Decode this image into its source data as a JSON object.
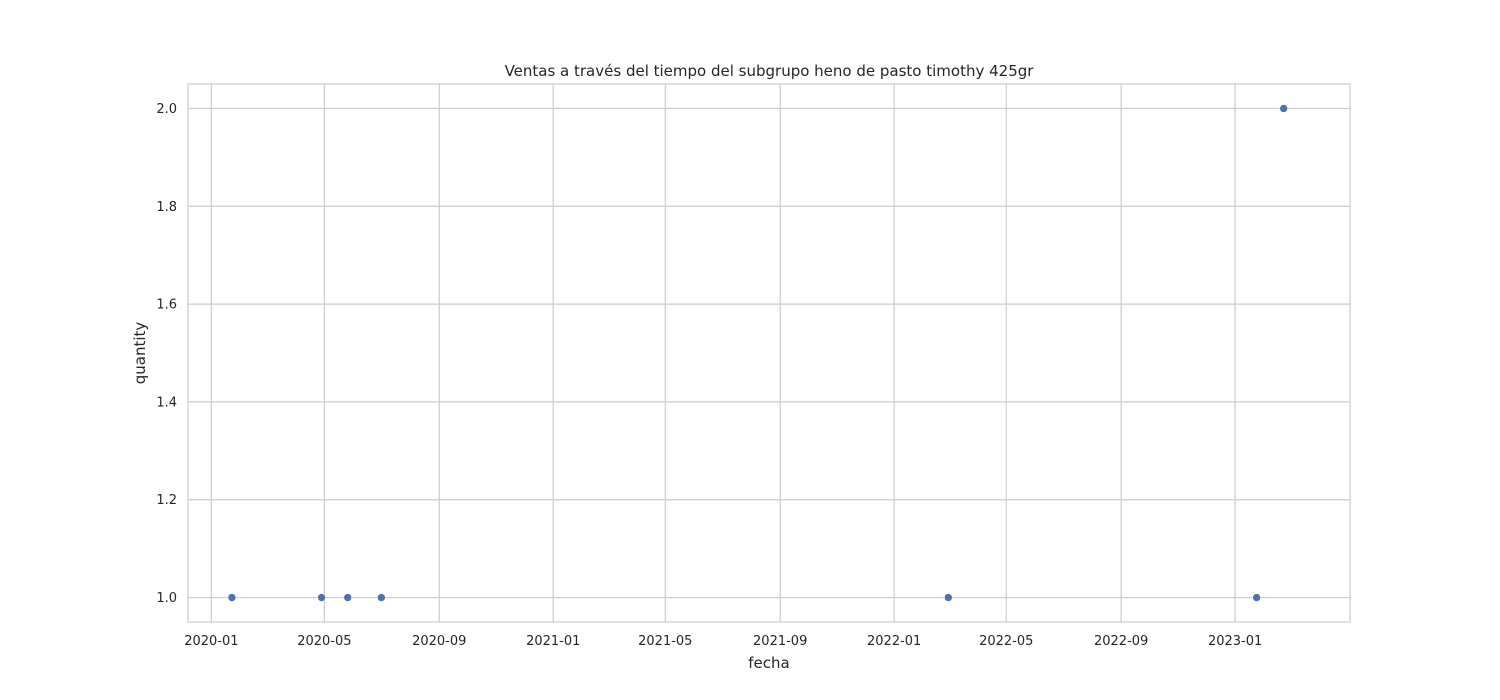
{
  "chart_data": {
    "type": "scatter",
    "title": "Ventas a través del tiempo del subgrupo heno de pasto timothy 425gr",
    "xlabel": "fecha",
    "ylabel": "quantity",
    "x_axis": {
      "scale": "date",
      "range": [
        "2019-12-07",
        "2023-05-04"
      ],
      "ticks": [
        "2020-01",
        "2020-05",
        "2020-09",
        "2021-01",
        "2021-05",
        "2021-09",
        "2022-01",
        "2022-05",
        "2022-09",
        "2023-01"
      ]
    },
    "y_axis": {
      "range": [
        0.95,
        2.05
      ],
      "ticks": [
        "1.0",
        "1.2",
        "1.4",
        "1.6",
        "1.8",
        "2.0"
      ]
    },
    "grid": true,
    "marker_color": "#4c72b0",
    "points": [
      {
        "x": "2020-01-23",
        "y": 1
      },
      {
        "x": "2020-04-28",
        "y": 1
      },
      {
        "x": "2020-05-26",
        "y": 1
      },
      {
        "x": "2020-07-01",
        "y": 1
      },
      {
        "x": "2022-02-28",
        "y": 1
      },
      {
        "x": "2023-01-24",
        "y": 1
      },
      {
        "x": "2023-02-22",
        "y": 2
      }
    ]
  }
}
